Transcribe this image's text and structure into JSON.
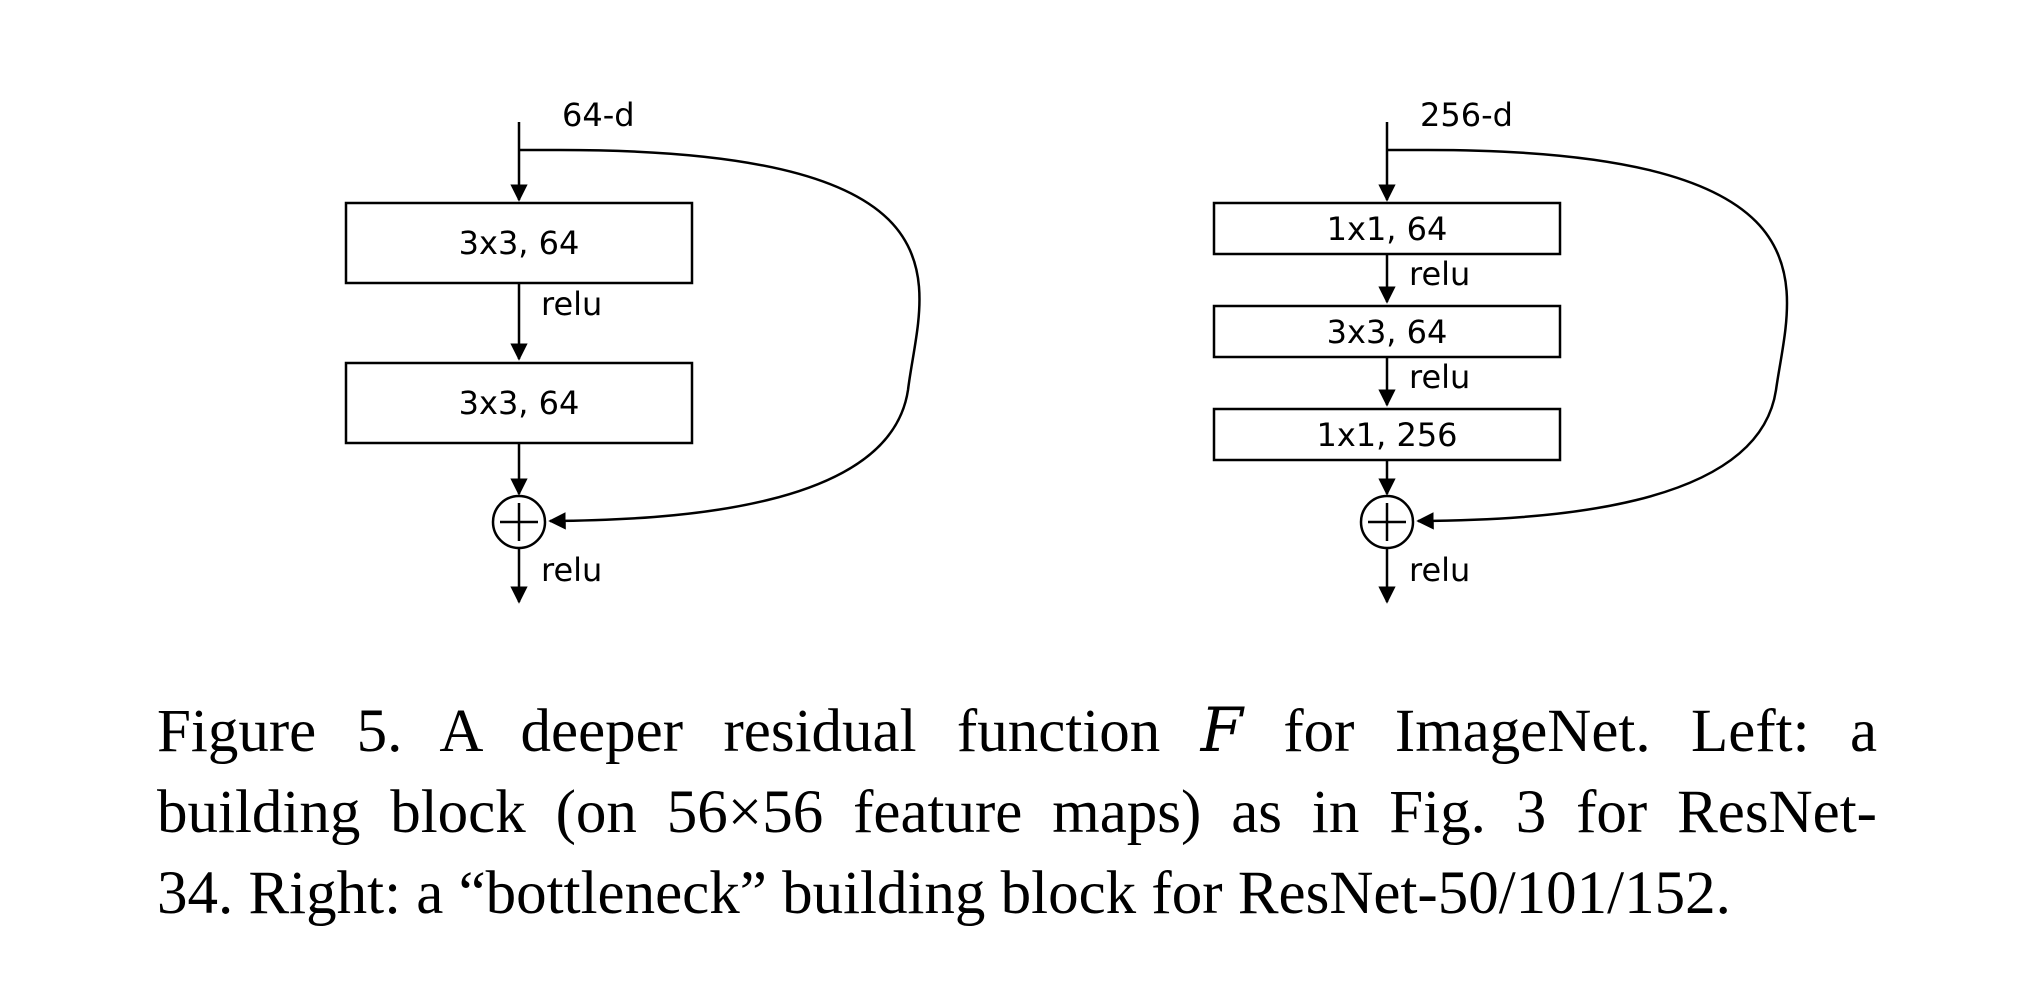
{
  "left_block": {
    "input_label": "64-d",
    "layers": [
      {
        "label": "3x3, 64"
      },
      {
        "label": "3x3, 64"
      }
    ],
    "activation_between": "relu",
    "activation_out": "relu"
  },
  "right_block": {
    "input_label": "256-d",
    "layers": [
      {
        "label": "1x1, 64"
      },
      {
        "label": "3x3, 64"
      },
      {
        "label": "1x1, 256"
      }
    ],
    "activation_between_1": "relu",
    "activation_between_2": "relu",
    "activation_out": "relu"
  },
  "caption": {
    "line1_prefix": "Figure 5. A deeper residual function",
    "line1_symbol": "F",
    "line1_suffix": "for ImageNet.  Left: a",
    "line2": "building block (on 56×56 feature maps) as in Fig. 3 for ResNet-",
    "line3": "34. Right: a “bottleneck” building block for ResNet-50/101/152."
  }
}
